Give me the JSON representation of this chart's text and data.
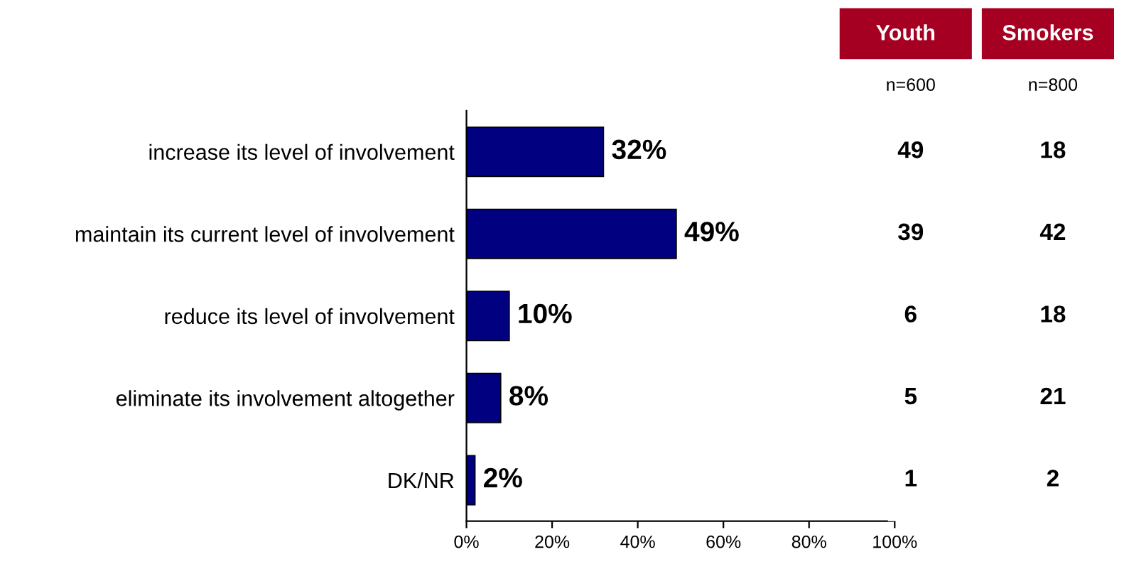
{
  "chart_data": [
    {
      "type": "bar",
      "orientation": "horizontal",
      "categories": [
        "increase its level of involvement",
        "maintain its current level of involvement",
        "reduce its level of involvement",
        "eliminate its involvement altogether",
        "DK/NR"
      ],
      "values": [
        32,
        49,
        10,
        8,
        2
      ],
      "color": "#000080",
      "value_labels": [
        "32%",
        "49%",
        "10%",
        "8%",
        "2%"
      ],
      "xlim": [
        0,
        100
      ],
      "xticks": [
        {
          "value": 0,
          "label": "0%"
        },
        {
          "value": 20,
          "label": "20%"
        },
        {
          "value": 40,
          "label": "40%"
        },
        {
          "value": 60,
          "label": "60%"
        },
        {
          "value": 80,
          "label": "80%"
        },
        {
          "value": 100,
          "label": "100%"
        }
      ],
      "grid": false
    },
    {
      "type": "heatmap",
      "categories": [
        "Youth",
        "Smokers"
      ],
      "y_categories": [
        null,
        null,
        null,
        null,
        null
      ],
      "annotations": [
        "n=600",
        "n=800"
      ],
      "data_labels": true,
      "cells": [
        [
          49,
          18
        ],
        [
          39,
          42
        ],
        [
          6,
          18
        ],
        [
          5,
          21
        ],
        [
          1,
          2
        ]
      ]
    }
  ]
}
